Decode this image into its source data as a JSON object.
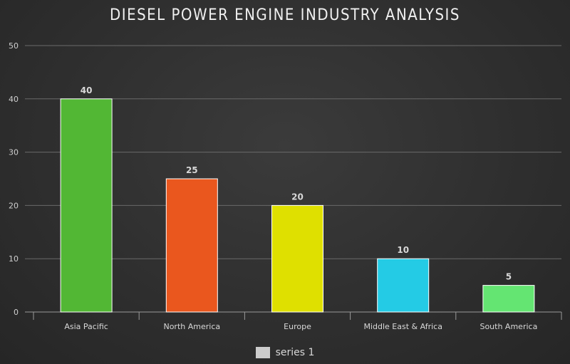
{
  "chart_data": {
    "type": "bar",
    "title": "DIESEL POWER ENGINE INDUSTRY ANALYSIS",
    "categories": [
      "Asia Pacific",
      "North America",
      "Europe",
      "Middle East & Africa",
      "South America"
    ],
    "series": [
      {
        "name": "series 1",
        "values": [
          40,
          25,
          20,
          10,
          5
        ]
      }
    ],
    "bar_colors": [
      "#52b734",
      "#ea571e",
      "#dfe000",
      "#24cbe5",
      "#64e572"
    ],
    "legend_color": "#cccccc",
    "y_ticks": [
      "0",
      "10",
      "20",
      "30",
      "40",
      "50"
    ],
    "ylim": [
      0,
      50
    ],
    "grid": true,
    "legend_position": "bottom-center",
    "data_labels": [
      "40",
      "25",
      "20",
      "10",
      "5"
    ]
  }
}
